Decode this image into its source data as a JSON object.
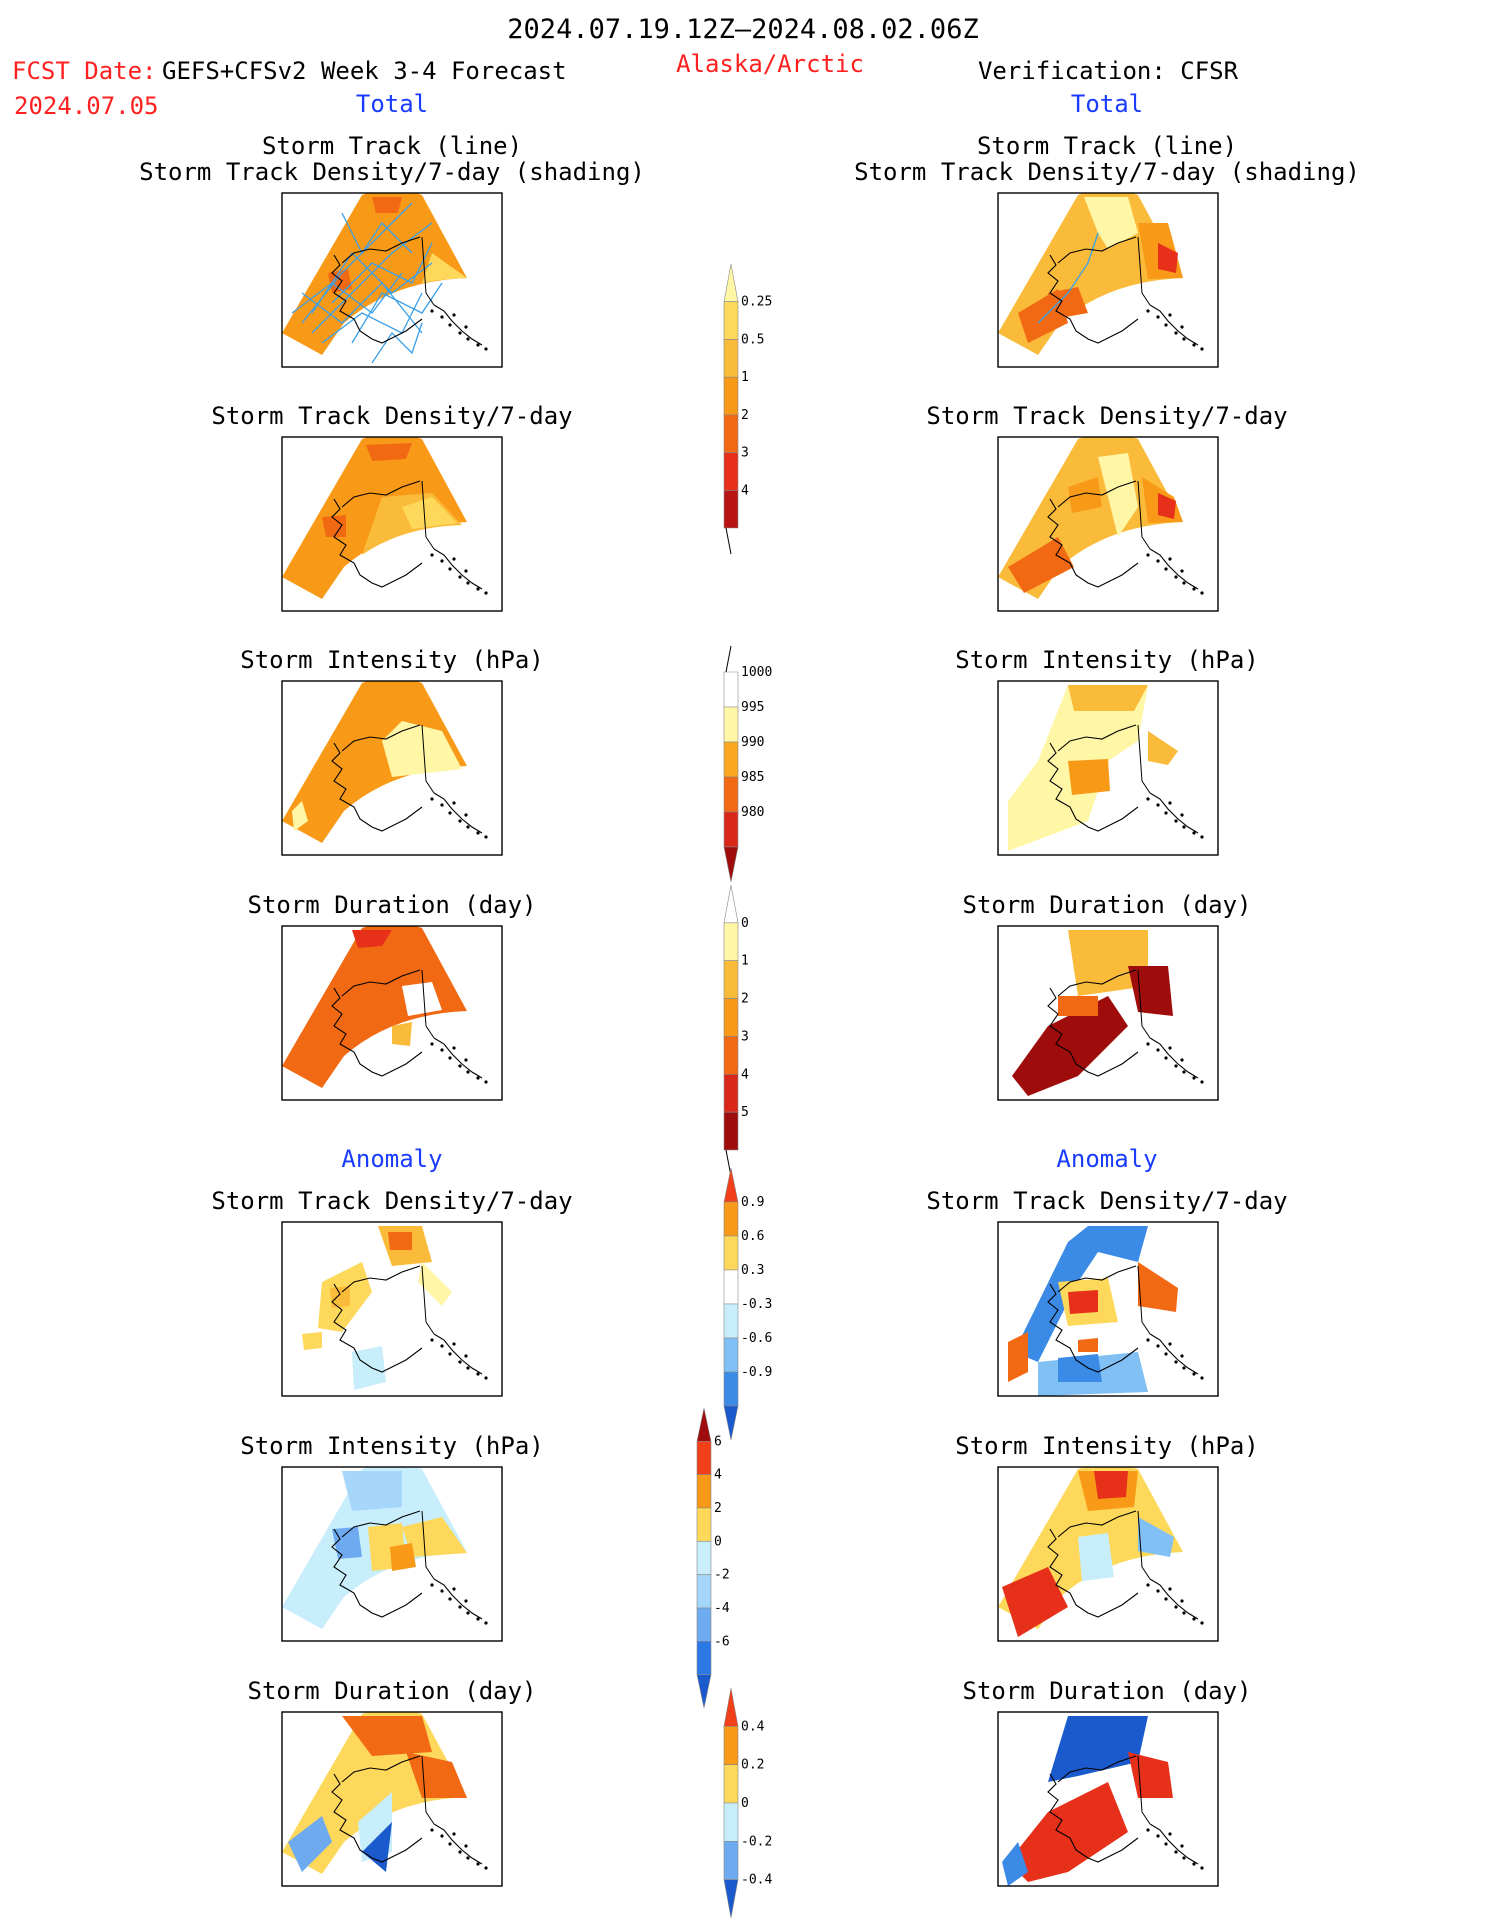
{
  "header": {
    "date_range": "2024.07.19.12Z–2024.08.02.06Z",
    "fcst_label": "FCST Date:",
    "fcst_model": "GEFS+CFSv2 Week 3-4 Forecast",
    "fcst_date": "2024.07.05",
    "region": "Alaska/Arctic",
    "verification": "Verification: CFSR",
    "left_section": "Total",
    "right_section": "Total",
    "left_anomaly": "Anomaly",
    "right_anomaly": "Anomaly"
  },
  "colors": {
    "text": "#000000",
    "red_text": "#ff2020",
    "blue_text": "#1a3cff",
    "track_line": "#3aa0e8"
  },
  "panels": {
    "track_title_1": "Storm Track (line)",
    "track_title_2": "Storm Track Density/7-day (shading)",
    "density": "Storm Track Density/7-day",
    "intensity": "Storm Intensity (hPa)",
    "duration": "Storm Duration (day)"
  },
  "chart_data": [
    {
      "type": "heatmap",
      "name": "density-scale",
      "levels": [
        "0.25",
        "0.5",
        "1",
        "2",
        "3",
        "4"
      ],
      "colors": [
        "#fff6a6",
        "#fdd85a",
        "#fbbb3a",
        "#f89a18",
        "#f26914",
        "#e6301a",
        "#b81414"
      ]
    },
    {
      "type": "heatmap",
      "name": "intensity-scale",
      "levels": [
        "1000",
        "995",
        "990",
        "985",
        "980"
      ],
      "colors": [
        "#ffffff",
        "#fff6a6",
        "#f9a820",
        "#f26914",
        "#d9281a",
        "#9e0c0c"
      ]
    },
    {
      "type": "heatmap",
      "name": "duration-scale",
      "levels": [
        "0",
        "1",
        "2",
        "3",
        "4",
        "5"
      ],
      "colors": [
        "#ffffff",
        "#fff6a6",
        "#fbbb3a",
        "#f89a18",
        "#f26914",
        "#d9281a",
        "#9e0c0c"
      ]
    },
    {
      "type": "heatmap",
      "name": "density-anomaly-scale",
      "levels": [
        "0.9",
        "0.6",
        "0.3",
        "-0.3",
        "-0.6",
        "-0.9"
      ],
      "colors": [
        "#f2401a",
        "#f89a18",
        "#fdd85a",
        "#ffffff",
        "#c8eefc",
        "#80c0f4",
        "#3a8ae6",
        "#1a5acc"
      ]
    },
    {
      "type": "heatmap",
      "name": "intensity-anomaly-scale",
      "levels": [
        "6",
        "4",
        "2",
        "0",
        "-2",
        "-4",
        "-6"
      ],
      "colors": [
        "#9e0c0c",
        "#f2401a",
        "#f89a18",
        "#fdd85a",
        "#c8eefc",
        "#a6d6fa",
        "#6eaaf0",
        "#2a78e6",
        "#1a5acc"
      ]
    },
    {
      "type": "heatmap",
      "name": "duration-anomaly-scale",
      "levels": [
        "0.4",
        "0.2",
        "0",
        "-0.2",
        "-0.4"
      ],
      "colors": [
        "#f2401a",
        "#f89a18",
        "#fdd85a",
        "#c8eefc",
        "#6eaaf0",
        "#1a5acc"
      ]
    }
  ]
}
